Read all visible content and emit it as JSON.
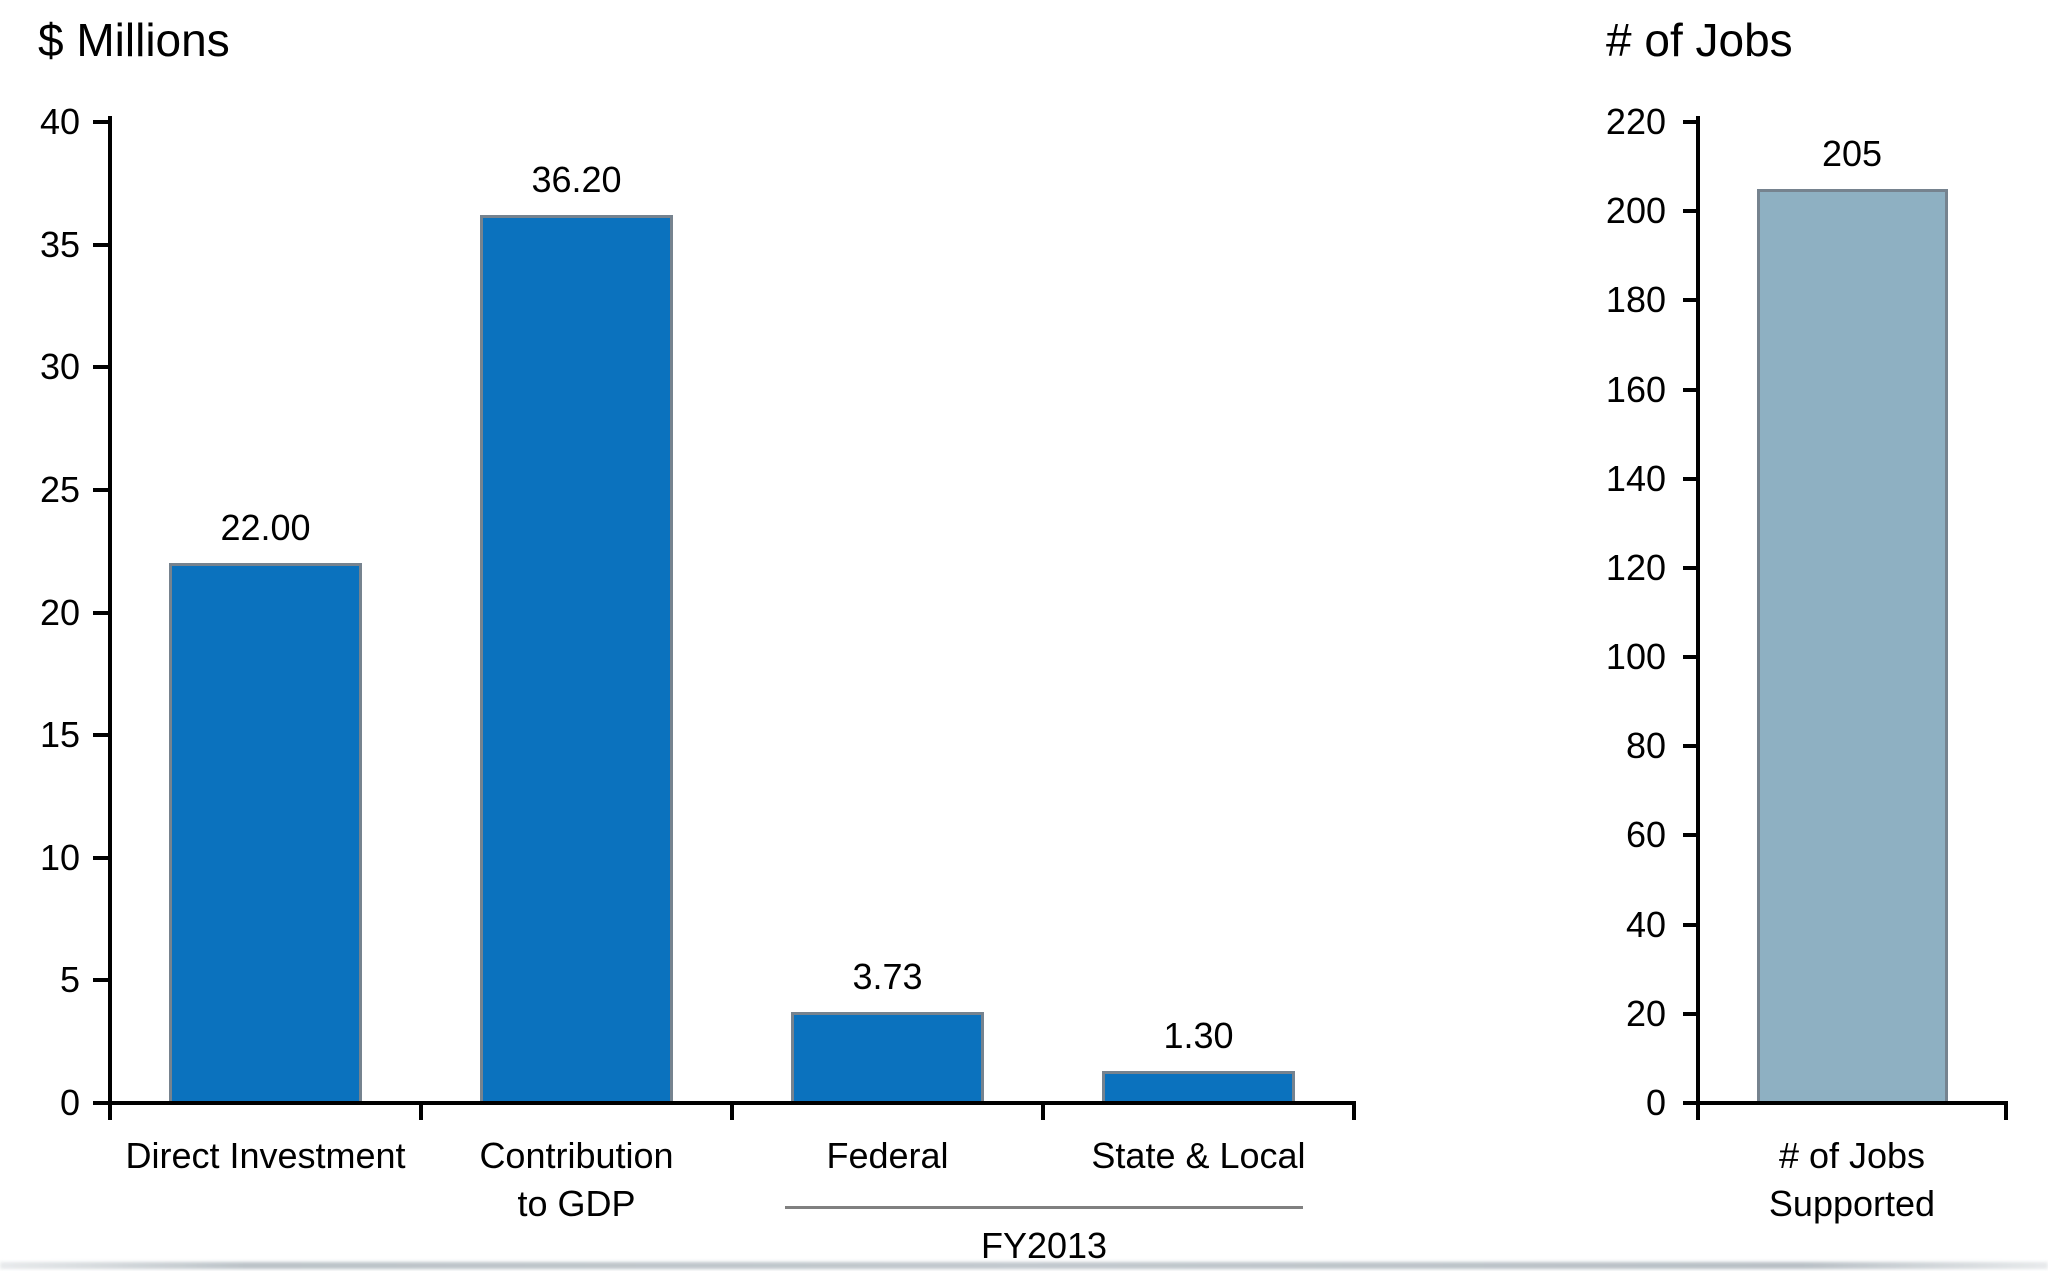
{
  "page": {
    "background": "#ffffff",
    "bottom_edge_color": "#b3bcc2"
  },
  "chart_data": [
    {
      "type": "bar",
      "title": "$ Millions",
      "categories": [
        "Direct Investment",
        "Contribution\nto GDP",
        "Federal",
        "State & Local"
      ],
      "values": [
        22.0,
        36.2,
        3.73,
        1.3
      ],
      "data_labels": [
        "22.00",
        "36.20",
        "3.73",
        "1.30"
      ],
      "xlabel": "",
      "ylabel": "$ Millions",
      "ylim": [
        0,
        40
      ],
      "ytick_step": 5,
      "ytick_labels": [
        "0",
        "5",
        "10",
        "15",
        "20",
        "25",
        "30",
        "35",
        "40"
      ],
      "grid": false,
      "legend": false,
      "bar_fill": "#0B72BE",
      "bar_stroke": "#76838F",
      "axis_color": "#000000",
      "group_annotation": {
        "label": "FY2013",
        "categories": [
          "Federal",
          "State & Local"
        ],
        "line_color": "#808080"
      }
    },
    {
      "type": "bar",
      "title": "# of Jobs",
      "categories": [
        "# of Jobs\nSupported"
      ],
      "values": [
        205
      ],
      "data_labels": [
        "205"
      ],
      "xlabel": "",
      "ylabel": "# of Jobs",
      "ylim": [
        0,
        220
      ],
      "ytick_step": 20,
      "ytick_labels": [
        "0",
        "20",
        "40",
        "60",
        "80",
        "100",
        "120",
        "140",
        "160",
        "180",
        "200",
        "220"
      ],
      "grid": false,
      "legend": false,
      "bar_fill": "#8EB0C2",
      "bar_stroke": "#76838F",
      "axis_color": "#000000"
    }
  ]
}
